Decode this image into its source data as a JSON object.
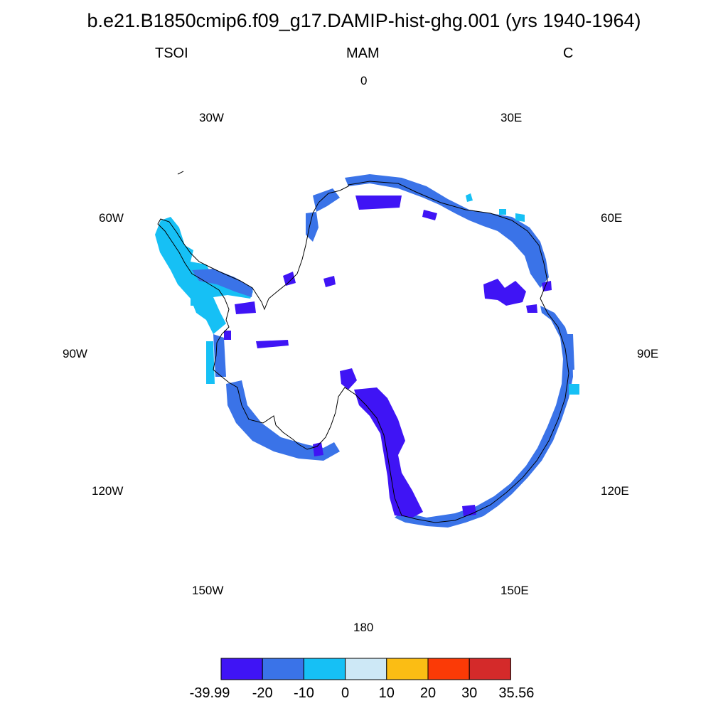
{
  "title": "b.e21.B1850cmip6.f09_g17.DAMIP-hist-ghg.001 (yrs 1940-1964)",
  "subtitle": {
    "left": "TSOI",
    "center": "MAM",
    "right": "C"
  },
  "longitude_labels": [
    "0",
    "30E",
    "60E",
    "90E",
    "120E",
    "150E",
    "180",
    "150W",
    "120W",
    "90W",
    "60W",
    "30W"
  ],
  "colorbar": {
    "colors": [
      "#3f14f5",
      "#3a73e8",
      "#16c0f5",
      "#cde8f6",
      "#fbbd14",
      "#fb3a06",
      "#d42a2a"
    ],
    "labels": [
      "-39.99",
      "-20",
      "-10",
      "0",
      "10",
      "20",
      "30",
      "35.56"
    ]
  },
  "map_layers": {
    "coastline": "antarctica-coastline",
    "fill_regions": [
      "peninsula-cyan",
      "coast-blue",
      "ross-violet",
      "east-blue"
    ]
  }
}
